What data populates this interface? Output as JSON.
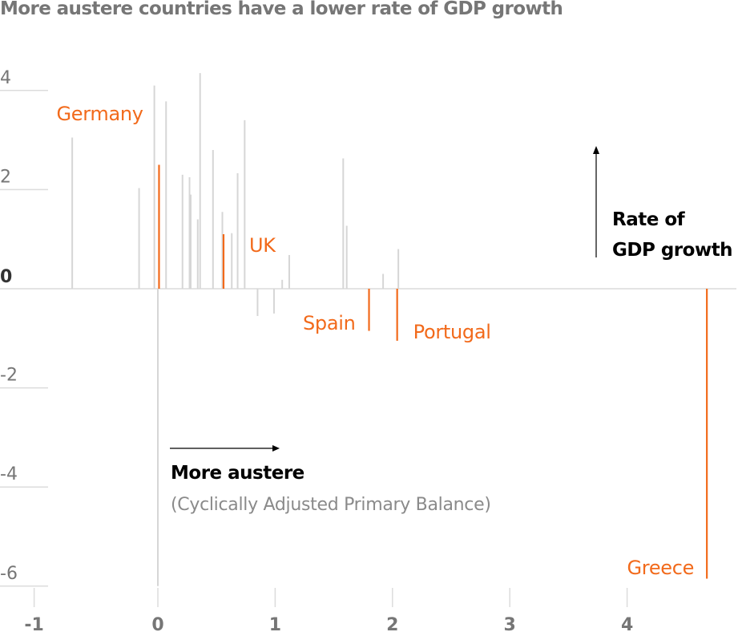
{
  "chart_data": {
    "type": "scatter",
    "title": "More austere countries have a lower rate of GDP growth",
    "xlabel": "More austere",
    "xlabel_sub": "(Cyclically Adjusted Primary Balance)",
    "ylabel": "Rate of GDP growth",
    "ylabel_lines": [
      "Rate of",
      "GDP growth"
    ],
    "xlim": [
      -1,
      4.9
    ],
    "ylim": [
      -6.1,
      4.3
    ],
    "x_ticks": [
      "-1",
      "0",
      "1",
      "2",
      "3",
      "4"
    ],
    "y_ticks": [
      "4",
      "2",
      "0",
      "-2",
      "-4",
      "-6"
    ],
    "colors": {
      "highlight": "#f26a1b",
      "other": "#d6d6d6",
      "axis": "#dcdcdc",
      "tick_label": "#767676"
    },
    "highlighted": [
      {
        "name": "Germany",
        "x": 0.01,
        "y": 2.5
      },
      {
        "name": "UK",
        "x": 0.56,
        "y": 1.1
      },
      {
        "name": "Spain",
        "x": 1.8,
        "y": -0.85
      },
      {
        "name": "Portugal",
        "x": 2.04,
        "y": -1.05
      },
      {
        "name": "Greece",
        "x": 4.68,
        "y": -5.85
      }
    ],
    "others": [
      {
        "x": -0.73,
        "y": 3.05
      },
      {
        "x": -0.16,
        "y": 2.03
      },
      {
        "x": -0.03,
        "y": 4.1
      },
      {
        "x": 0.0,
        "y": -6.0
      },
      {
        "x": 0.07,
        "y": 3.78
      },
      {
        "x": 0.21,
        "y": 2.3
      },
      {
        "x": 0.27,
        "y": 2.25
      },
      {
        "x": 0.28,
        "y": 1.9
      },
      {
        "x": 0.34,
        "y": 1.4
      },
      {
        "x": 0.36,
        "y": 4.35
      },
      {
        "x": 0.47,
        "y": 2.8
      },
      {
        "x": 0.55,
        "y": 0.25
      },
      {
        "x": 0.55,
        "y": 1.55
      },
      {
        "x": 0.63,
        "y": 1.12
      },
      {
        "x": 0.68,
        "y": 2.33
      },
      {
        "x": 0.74,
        "y": 3.4
      },
      {
        "x": 0.85,
        "y": -0.55
      },
      {
        "x": 0.99,
        "y": -0.5
      },
      {
        "x": 1.06,
        "y": 0.18
      },
      {
        "x": 1.12,
        "y": 0.68
      },
      {
        "x": 1.58,
        "y": 2.63
      },
      {
        "x": 1.61,
        "y": 1.27
      },
      {
        "x": 1.92,
        "y": 0.3
      },
      {
        "x": 2.05,
        "y": 0.8
      }
    ]
  }
}
